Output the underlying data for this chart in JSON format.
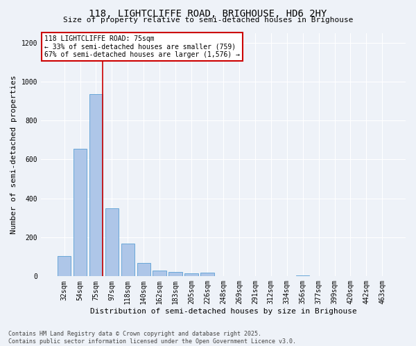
{
  "title_line1": "118, LIGHTCLIFFE ROAD, BRIGHOUSE, HD6 2HY",
  "title_line2": "Size of property relative to semi-detached houses in Brighouse",
  "xlabel": "Distribution of semi-detached houses by size in Brighouse",
  "ylabel": "Number of semi-detached properties",
  "categories": [
    "32sqm",
    "54sqm",
    "75sqm",
    "97sqm",
    "118sqm",
    "140sqm",
    "162sqm",
    "183sqm",
    "205sqm",
    "226sqm",
    "248sqm",
    "269sqm",
    "291sqm",
    "312sqm",
    "334sqm",
    "356sqm",
    "377sqm",
    "399sqm",
    "420sqm",
    "442sqm",
    "463sqm"
  ],
  "values": [
    105,
    655,
    935,
    350,
    168,
    70,
    28,
    22,
    14,
    18,
    0,
    0,
    0,
    0,
    0,
    5,
    0,
    0,
    0,
    0,
    0
  ],
  "bar_color": "#aec6e8",
  "bar_edge_color": "#5a9fd4",
  "highlight_line_index": 2,
  "highlight_line_color": "#cc0000",
  "annotation_text_line1": "118 LIGHTCLIFFE ROAD: 75sqm",
  "annotation_text_line2": "← 33% of semi-detached houses are smaller (759)",
  "annotation_text_line3": "67% of semi-detached houses are larger (1,576) →",
  "annotation_box_color": "#cc0000",
  "ylim": [
    0,
    1250
  ],
  "yticks": [
    0,
    200,
    400,
    600,
    800,
    1000,
    1200
  ],
  "footer_line1": "Contains HM Land Registry data © Crown copyright and database right 2025.",
  "footer_line2": "Contains public sector information licensed under the Open Government Licence v3.0.",
  "bg_color": "#eef2f8",
  "plot_bg_color": "#eef2f8",
  "title_fontsize": 10,
  "subtitle_fontsize": 8,
  "ylabel_fontsize": 8,
  "xlabel_fontsize": 8,
  "tick_fontsize": 7,
  "annotation_fontsize": 7,
  "footer_fontsize": 6
}
